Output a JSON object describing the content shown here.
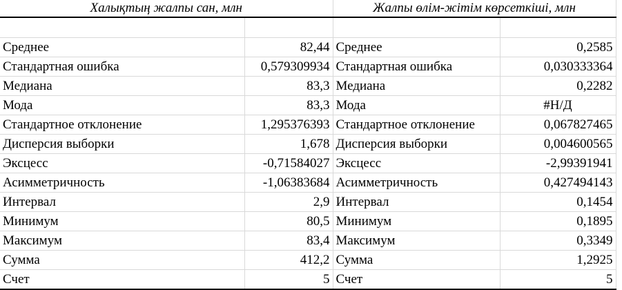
{
  "headers": {
    "left": "Халықтың жалпы сан, млн",
    "right": "Жалпы өлім-жітім көрсеткіші, млн"
  },
  "rows": [
    {
      "label_a": "Среднее",
      "value_a": "82,44",
      "label_b": "Среднее",
      "value_b": "0,2585"
    },
    {
      "label_a": "Стандартная ошибка",
      "value_a": "0,579309934",
      "label_b": "Стандартная ошибка",
      "value_b": "0,030333364"
    },
    {
      "label_a": "Медиана",
      "value_a": "83,3",
      "label_b": "Медиана",
      "value_b": "0,2282"
    },
    {
      "label_a": "Мода",
      "value_a": "83,3",
      "label_b": "Мода",
      "value_b": "#Н/Д"
    },
    {
      "label_a": "Стандартное отклонение",
      "value_a": "1,295376393",
      "label_b": "Стандартное отклонение",
      "value_b": "0,067827465"
    },
    {
      "label_a": "Дисперсия выборки",
      "value_a": "1,678",
      "label_b": "Дисперсия выборки",
      "value_b": "0,004600565"
    },
    {
      "label_a": "Эксцесс",
      "value_a": "-0,71584027",
      "label_b": "Эксцесс",
      "value_b": "-2,99391941"
    },
    {
      "label_a": "Асимметричность",
      "value_a": "-1,06383684",
      "label_b": "Асимметричность",
      "value_b": "0,427494143"
    },
    {
      "label_a": "Интервал",
      "value_a": "2,9",
      "label_b": "Интервал",
      "value_b": "0,1454"
    },
    {
      "label_a": "Минимум",
      "value_a": "80,5",
      "label_b": "Минимум",
      "value_b": "0,1895"
    },
    {
      "label_a": "Максимум",
      "value_a": "83,4",
      "label_b": "Максимум",
      "value_b": "0,3349"
    },
    {
      "label_a": "Сумма",
      "value_a": "412,2",
      "label_b": "Сумма",
      "value_b": "1,2925"
    },
    {
      "label_a": "Счет",
      "value_a": "5",
      "label_b": "Счет",
      "value_b": "5"
    }
  ]
}
